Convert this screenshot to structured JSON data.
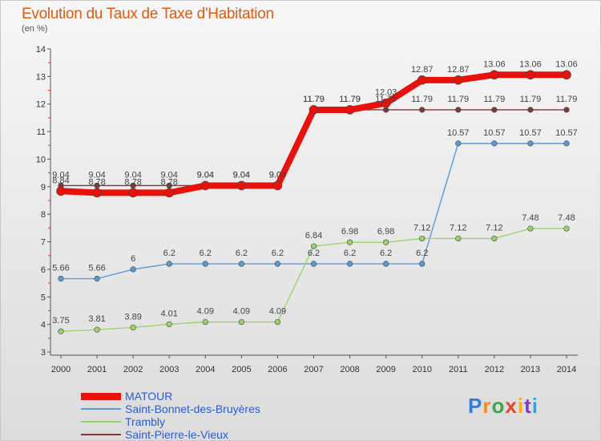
{
  "title": "Evolution du Taux de Taxe d'Habitation",
  "unit_label": "(en %)",
  "logo_text": "Proxiti",
  "chart_data": {
    "type": "line",
    "title": "Evolution du Taux de Taxe d'Habitation",
    "ylabel": "(en %)",
    "xlabel": "",
    "x": [
      "2000",
      "2001",
      "2002",
      "2003",
      "2004",
      "2005",
      "2006",
      "2007",
      "2008",
      "2009",
      "2010",
      "2011",
      "2012",
      "2013",
      "2014"
    ],
    "ylim": [
      3,
      14
    ],
    "yticks": [
      "3",
      "4",
      "5",
      "6",
      "7",
      "8",
      "9",
      "10",
      "11",
      "12",
      "13",
      "14"
    ],
    "grid": false,
    "legend_position": "bottom-left",
    "series": [
      {
        "name": "MATOUR",
        "color": "#e8120c",
        "values": [
          8.84,
          8.78,
          8.78,
          8.78,
          9.04,
          9.04,
          9.04,
          11.79,
          11.79,
          12.03,
          12.87,
          12.87,
          13.06,
          13.06,
          13.06
        ],
        "labels": [
          "8.84",
          "8.78",
          "8.78",
          "8.78",
          "9.04",
          "9.04",
          "9.04",
          "11.79",
          "11.79",
          "12.03",
          "12.87",
          "12.87",
          "13.06",
          "13.06",
          "13.06"
        ]
      },
      {
        "name": "Saint-Bonnet-des-Bruyères",
        "color": "#5b9bd5",
        "values": [
          5.66,
          5.66,
          6.0,
          6.2,
          6.2,
          6.2,
          6.2,
          6.2,
          6.2,
          6.2,
          6.2,
          10.57,
          10.57,
          10.57,
          10.57
        ],
        "labels": [
          "5.66",
          "5.66",
          "6",
          "6.2",
          "6.2",
          "6.2",
          "6.2",
          "6.2",
          "6.2",
          "6.2",
          "6.2",
          "10.57",
          "10.57",
          "10.57",
          "10.57"
        ]
      },
      {
        "name": "Trambly",
        "color": "#9bd36b",
        "values": [
          3.75,
          3.81,
          3.89,
          4.01,
          4.09,
          4.09,
          4.09,
          6.84,
          6.98,
          6.98,
          7.12,
          7.12,
          7.12,
          7.48,
          7.48
        ],
        "labels": [
          "3.75",
          "3.81",
          "3.89",
          "4.01",
          "4.09",
          "4.09",
          "4.09",
          "6.84",
          "6.98",
          "6.98",
          "7.12",
          "7.12",
          "7.12",
          "7.48",
          "7.48"
        ]
      },
      {
        "name": "Saint-Pierre-le-Vieux",
        "color": "#7a3b3b",
        "values": [
          9.04,
          9.04,
          9.04,
          9.04,
          9.04,
          9.04,
          9.04,
          11.79,
          11.79,
          11.79,
          11.79,
          11.79,
          11.79,
          11.79,
          11.79
        ],
        "labels": [
          "9.04",
          "9.04",
          "9.04",
          "9.04",
          "9.04",
          "9.04",
          "9.04",
          "11.79",
          "11.79",
          "11.79",
          "11.79",
          "11.79",
          "11.79",
          "11.79",
          "11.79"
        ]
      }
    ]
  }
}
